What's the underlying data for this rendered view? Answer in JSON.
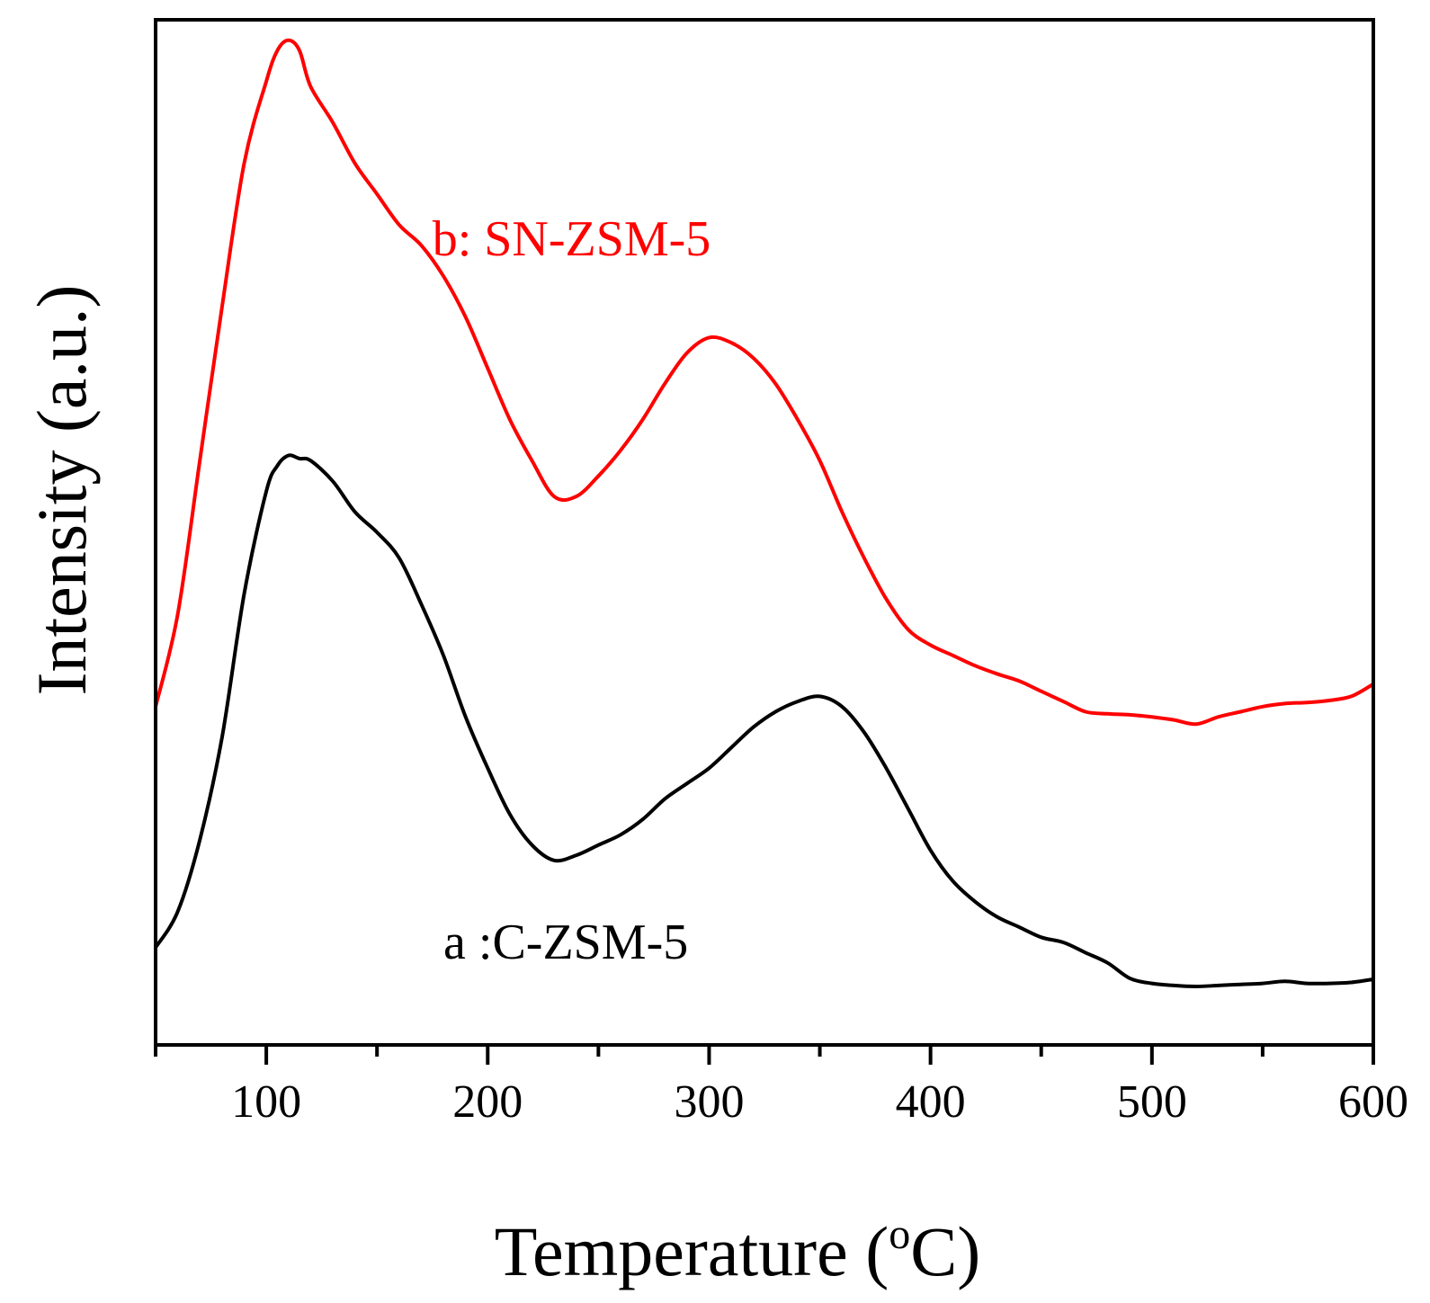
{
  "chart_data": {
    "type": "line",
    "title": "",
    "xlabel": "Temperature (",
    "xlabel_sup": "o",
    "xlabel_end": "C)",
    "ylabel": "Intensity (a.u.)",
    "xlim": [
      50,
      600
    ],
    "ylim": [
      0,
      100
    ],
    "xticks": [
      100,
      200,
      300,
      400,
      500,
      600
    ],
    "xtick_labels": [
      "100",
      "200",
      "300",
      "400",
      "500",
      "600"
    ],
    "minor_xticks": [
      50,
      150,
      250,
      350,
      450,
      550
    ],
    "yticks_visible": false,
    "grid": false,
    "series": [
      {
        "name": "a :C-ZSM-5",
        "color": "#000000",
        "label_anchor": {
          "x": 180,
          "y": 8.4
        },
        "points": [
          [
            50,
            9.5
          ],
          [
            60,
            13
          ],
          [
            70,
            20
          ],
          [
            80,
            30
          ],
          [
            90,
            44
          ],
          [
            100,
            54
          ],
          [
            105,
            56.5
          ],
          [
            110,
            57.5
          ],
          [
            115,
            57.2
          ],
          [
            120,
            57
          ],
          [
            130,
            55
          ],
          [
            140,
            52
          ],
          [
            150,
            50
          ],
          [
            160,
            47.5
          ],
          [
            170,
            43
          ],
          [
            180,
            38
          ],
          [
            190,
            32
          ],
          [
            200,
            27
          ],
          [
            210,
            22.5
          ],
          [
            220,
            19.5
          ],
          [
            230,
            18
          ],
          [
            240,
            18.5
          ],
          [
            250,
            19.5
          ],
          [
            260,
            20.5
          ],
          [
            270,
            22
          ],
          [
            280,
            24
          ],
          [
            290,
            25.5
          ],
          [
            300,
            27
          ],
          [
            310,
            29
          ],
          [
            320,
            31
          ],
          [
            330,
            32.5
          ],
          [
            340,
            33.5
          ],
          [
            350,
            34
          ],
          [
            360,
            33
          ],
          [
            370,
            30.5
          ],
          [
            380,
            27
          ],
          [
            390,
            23
          ],
          [
            400,
            19
          ],
          [
            410,
            16
          ],
          [
            420,
            14
          ],
          [
            430,
            12.5
          ],
          [
            440,
            11.5
          ],
          [
            450,
            10.5
          ],
          [
            460,
            10
          ],
          [
            470,
            9
          ],
          [
            480,
            8
          ],
          [
            490,
            6.5
          ],
          [
            500,
            6
          ],
          [
            510,
            5.8
          ],
          [
            520,
            5.7
          ],
          [
            530,
            5.8
          ],
          [
            540,
            5.9
          ],
          [
            550,
            6
          ],
          [
            560,
            6.2
          ],
          [
            570,
            6
          ],
          [
            580,
            6
          ],
          [
            590,
            6.1
          ],
          [
            600,
            6.4
          ]
        ]
      },
      {
        "name": "b: SN-ZSM-5",
        "color": "#ff0000",
        "label_anchor": {
          "x": 175,
          "y": 77
        },
        "points": [
          [
            50,
            33
          ],
          [
            60,
            42
          ],
          [
            70,
            57
          ],
          [
            80,
            72
          ],
          [
            90,
            86
          ],
          [
            100,
            94
          ],
          [
            105,
            97
          ],
          [
            110,
            98
          ],
          [
            115,
            97
          ],
          [
            120,
            93.5
          ],
          [
            130,
            90
          ],
          [
            140,
            86
          ],
          [
            150,
            83
          ],
          [
            160,
            80
          ],
          [
            170,
            78
          ],
          [
            180,
            75
          ],
          [
            190,
            71
          ],
          [
            200,
            66
          ],
          [
            210,
            61
          ],
          [
            220,
            57
          ],
          [
            230,
            53.5
          ],
          [
            240,
            53.5
          ],
          [
            250,
            55.5
          ],
          [
            260,
            58
          ],
          [
            270,
            61
          ],
          [
            280,
            64.5
          ],
          [
            290,
            67.5
          ],
          [
            300,
            69
          ],
          [
            310,
            68.5
          ],
          [
            320,
            67
          ],
          [
            330,
            64.5
          ],
          [
            340,
            61
          ],
          [
            350,
            57
          ],
          [
            360,
            52
          ],
          [
            370,
            47.5
          ],
          [
            380,
            43.5
          ],
          [
            390,
            40.5
          ],
          [
            400,
            39
          ],
          [
            410,
            38
          ],
          [
            420,
            37
          ],
          [
            430,
            36.2
          ],
          [
            440,
            35.5
          ],
          [
            450,
            34.5
          ],
          [
            460,
            33.5
          ],
          [
            470,
            32.5
          ],
          [
            480,
            32.3
          ],
          [
            490,
            32.2
          ],
          [
            500,
            32
          ],
          [
            510,
            31.7
          ],
          [
            520,
            31.3
          ],
          [
            530,
            32
          ],
          [
            540,
            32.5
          ],
          [
            550,
            33
          ],
          [
            560,
            33.3
          ],
          [
            570,
            33.4
          ],
          [
            580,
            33.6
          ],
          [
            590,
            34
          ],
          [
            600,
            35.2
          ]
        ]
      }
    ]
  }
}
